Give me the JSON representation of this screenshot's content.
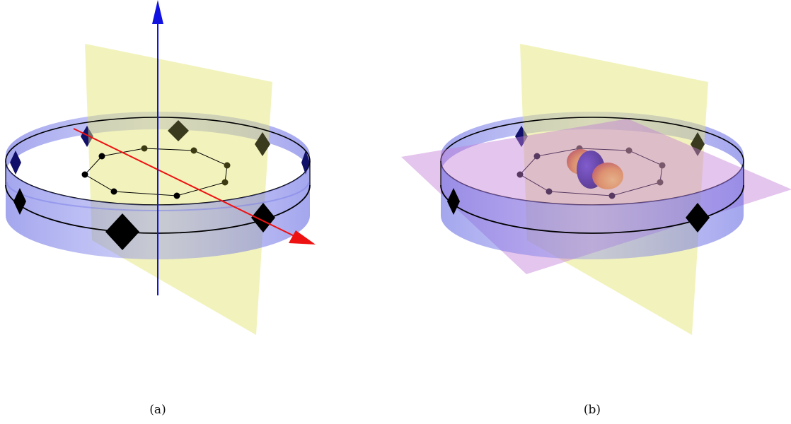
{
  "panels": [
    {
      "caption": "(a)"
    },
    {
      "caption": "(b)"
    }
  ],
  "colors": {
    "ring_blue": "#6f73e8",
    "plane_yellow": "#e4e67c",
    "plane_magenta": "#c48ad8",
    "axis_blue": "#1111e0",
    "axis_red": "#ee1111",
    "lobe_orange": "#f2a21c",
    "lobe_navy": "#17157a",
    "marker_black": "#000000"
  }
}
